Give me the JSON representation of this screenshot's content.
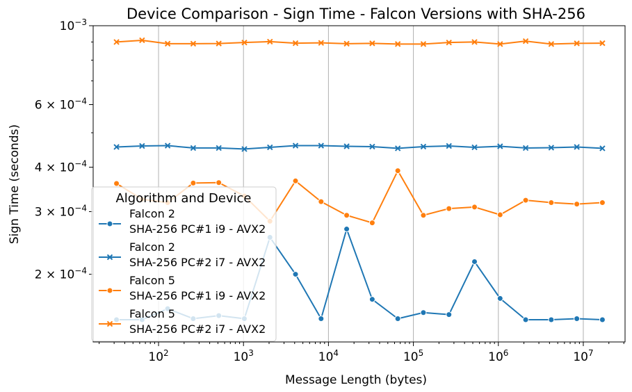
{
  "chart_data": {
    "type": "line",
    "title": "Device Comparison - Sign Time - Falcon Versions with SHA-256",
    "xlabel": "Message Length (bytes)",
    "ylabel": "Sign Time (seconds)",
    "x_scale": "log",
    "y_scale": "log",
    "xlim": [
      17,
      31000000
    ],
    "ylim": [
      0.000129,
      0.001
    ],
    "grid": "vertical",
    "x_ticks": [
      {
        "value": 100,
        "label": "10^2"
      },
      {
        "value": 1000,
        "label": "10^3"
      },
      {
        "value": 10000,
        "label": "10^4"
      },
      {
        "value": 100000,
        "label": "10^5"
      },
      {
        "value": 1000000,
        "label": "10^6"
      },
      {
        "value": 10000000,
        "label": "10^7"
      }
    ],
    "y_ticks": [
      {
        "value": 0.0002,
        "label": "2 × 10^-4"
      },
      {
        "value": 0.0003,
        "label": "3 × 10^-4"
      },
      {
        "value": 0.0004,
        "label": "4 × 10^-4"
      },
      {
        "value": 0.0006,
        "label": "6 × 10^-4"
      },
      {
        "value": 0.001,
        "label": "10^-3"
      }
    ],
    "legend": {
      "title": "Algorithm and Device",
      "placement": "lower-left"
    },
    "x": [
      32,
      64,
      128,
      256,
      512,
      1024,
      2048,
      4096,
      8192,
      16384,
      32768,
      65536,
      131072,
      262144,
      524288,
      1048576,
      2097152,
      4194304,
      8388608,
      16777216
    ],
    "series": [
      {
        "name": "Falcon 2\nSHA-256 PC#1 i9 - AVX2",
        "color": "#1f77b4",
        "marker": "circle",
        "values": [
          0.000149,
          0.000149,
          0.00016,
          0.00015,
          0.000153,
          0.00015,
          0.000254,
          0.0002,
          0.00015,
          0.000268,
          0.00017,
          0.00015,
          0.000156,
          0.000154,
          0.000217,
          0.000171,
          0.000149,
          0.000149,
          0.00015,
          0.000149
        ]
      },
      {
        "name": "Falcon 2\nSHA-256 PC#2 i7 - AVX2",
        "color": "#1f77b4",
        "marker": "x",
        "values": [
          0.000456,
          0.000459,
          0.00046,
          0.000453,
          0.000453,
          0.00045,
          0.000455,
          0.00046,
          0.00046,
          0.000458,
          0.000457,
          0.000452,
          0.000457,
          0.000459,
          0.000455,
          0.000458,
          0.000453,
          0.000454,
          0.000456,
          0.000452
        ]
      },
      {
        "name": "Falcon 5\nSHA-256 PC#1 i9 - AVX2",
        "color": "#ff7f0e",
        "marker": "circle",
        "values": [
          0.00036,
          0.000325,
          0.000318,
          0.000361,
          0.000362,
          0.000332,
          0.000282,
          0.000366,
          0.00032,
          0.000293,
          0.000279,
          0.000391,
          0.000293,
          0.000306,
          0.000309,
          0.000294,
          0.000323,
          0.000318,
          0.000315,
          0.000318
        ]
      },
      {
        "name": "Falcon 5\nSHA-256 PC#2 i7 - AVX2",
        "color": "#ff7f0e",
        "marker": "x",
        "values": [
          0.0009,
          0.00091,
          0.00089,
          0.00089,
          0.000891,
          0.000897,
          0.000902,
          0.000893,
          0.000895,
          0.00089,
          0.000892,
          0.000888,
          0.000888,
          0.000897,
          0.0009,
          0.000888,
          0.000905,
          0.000888,
          0.000892,
          0.000893
        ]
      }
    ]
  }
}
